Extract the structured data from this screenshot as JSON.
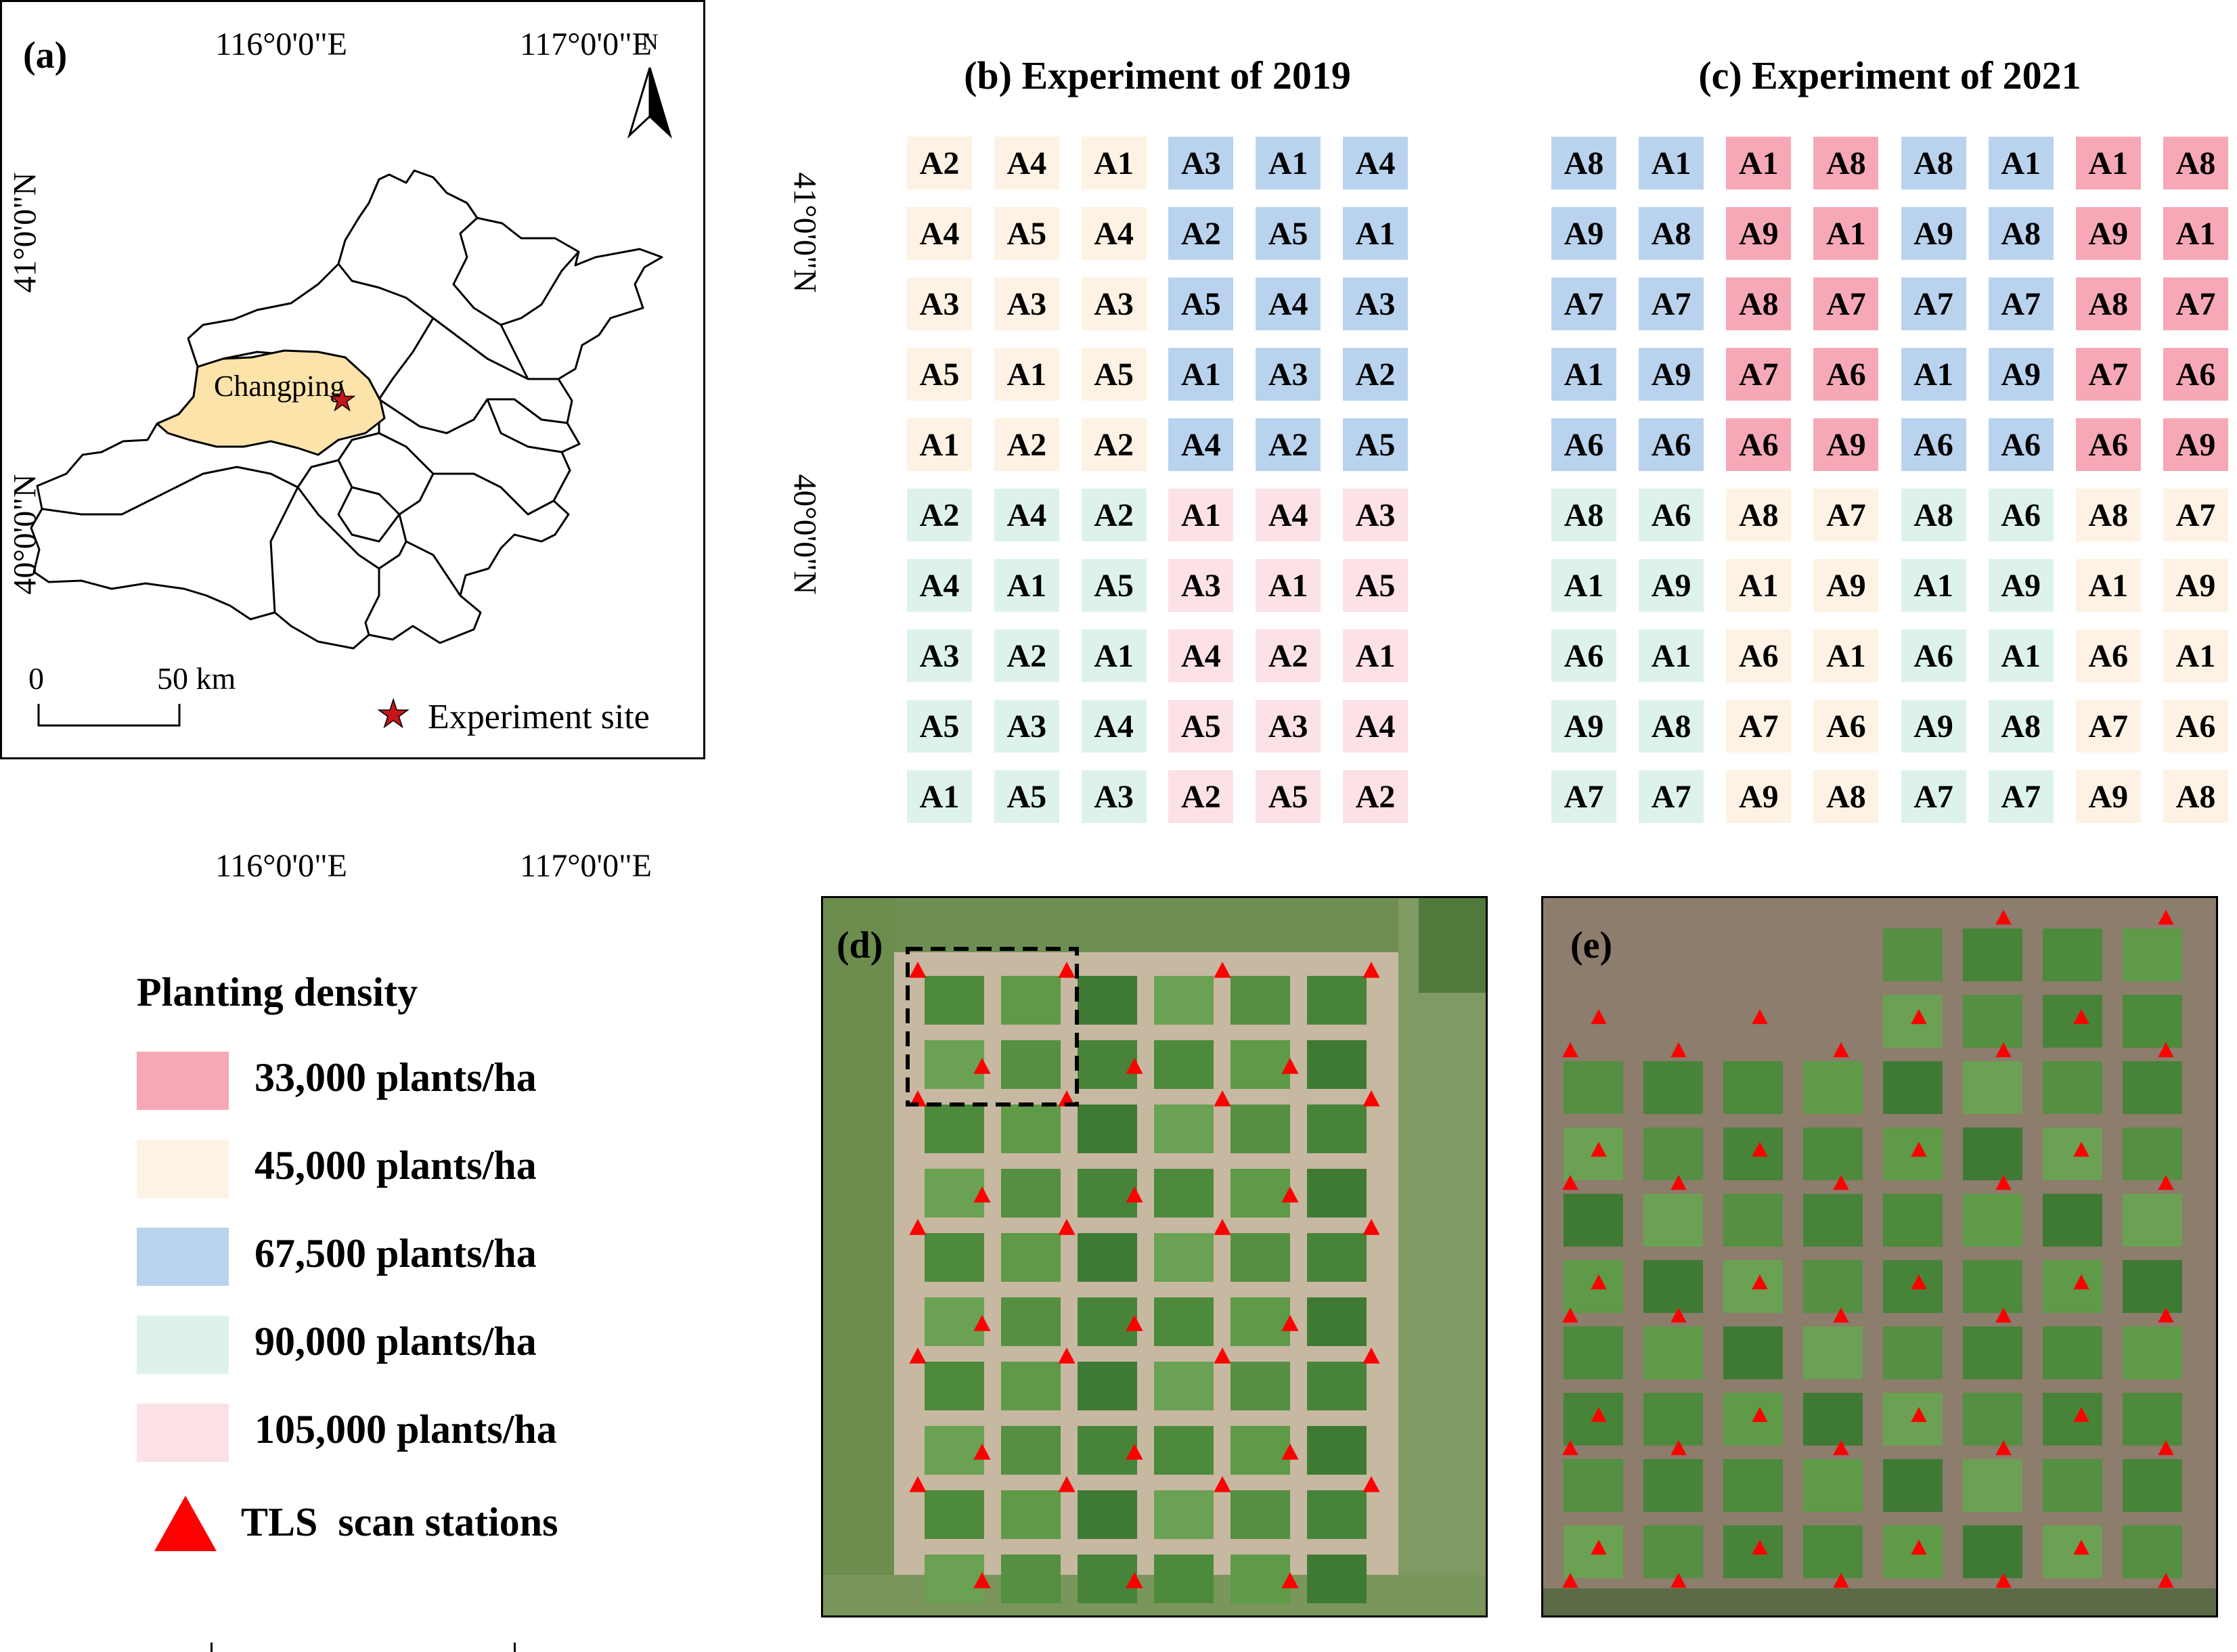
{
  "panel_a": {
    "label": "(a)",
    "top_lon_labels": [
      "116°0'0\"E",
      "117°0'0\"E"
    ],
    "bottom_lon_labels": [
      "116°0'0\"E",
      "117°0'0\"E"
    ],
    "left_lat_labels": [
      "41°0'0\"N",
      "40°0'0\"N"
    ],
    "right_lat_labels": [
      "41°0'0\"N",
      "40°0'0\"N"
    ],
    "north_label": "N",
    "highlight_district": "Changping",
    "scale_zero": "0",
    "scale_end": "50 km",
    "site_legend": "Experiment site",
    "star_symbol": "★",
    "district_color": "#fbe3a9",
    "site_color": "#c4161c"
  },
  "experiment_2019": {
    "title": "(b) Experiment of 2019",
    "rows": [
      [
        "A2",
        "A4",
        "A1",
        "A3",
        "A1",
        "A4"
      ],
      [
        "A4",
        "A5",
        "A4",
        "A2",
        "A5",
        "A1"
      ],
      [
        "A3",
        "A3",
        "A3",
        "A5",
        "A4",
        "A3"
      ],
      [
        "A5",
        "A1",
        "A5",
        "A1",
        "A3",
        "A2"
      ],
      [
        "A1",
        "A2",
        "A2",
        "A4",
        "A2",
        "A5"
      ],
      [
        "A2",
        "A4",
        "A2",
        "A1",
        "A4",
        "A3"
      ],
      [
        "A4",
        "A1",
        "A5",
        "A3",
        "A1",
        "A5"
      ],
      [
        "A3",
        "A2",
        "A1",
        "A4",
        "A2",
        "A1"
      ],
      [
        "A5",
        "A3",
        "A4",
        "A5",
        "A3",
        "A4"
      ],
      [
        "A1",
        "A5",
        "A3",
        "A2",
        "A5",
        "A2"
      ]
    ],
    "density_rows": [
      [
        "d45",
        "d45",
        "d45",
        "d675",
        "d675",
        "d675"
      ],
      [
        "d45",
        "d45",
        "d45",
        "d675",
        "d675",
        "d675"
      ],
      [
        "d45",
        "d45",
        "d45",
        "d675",
        "d675",
        "d675"
      ],
      [
        "d45",
        "d45",
        "d45",
        "d675",
        "d675",
        "d675"
      ],
      [
        "d45",
        "d45",
        "d45",
        "d675",
        "d675",
        "d675"
      ],
      [
        "d90",
        "d90",
        "d90",
        "d105",
        "d105",
        "d105"
      ],
      [
        "d90",
        "d90",
        "d90",
        "d105",
        "d105",
        "d105"
      ],
      [
        "d90",
        "d90",
        "d90",
        "d105",
        "d105",
        "d105"
      ],
      [
        "d90",
        "d90",
        "d90",
        "d105",
        "d105",
        "d105"
      ],
      [
        "d90",
        "d90",
        "d90",
        "d105",
        "d105",
        "d105"
      ]
    ]
  },
  "experiment_2021": {
    "title": "(c) Experiment of 2021",
    "rows": [
      [
        "A8",
        "A1",
        "A1",
        "A8",
        "A8",
        "A1",
        "A1",
        "A8"
      ],
      [
        "A9",
        "A8",
        "A9",
        "A1",
        "A9",
        "A8",
        "A9",
        "A1"
      ],
      [
        "A7",
        "A7",
        "A8",
        "A7",
        "A7",
        "A7",
        "A8",
        "A7"
      ],
      [
        "A1",
        "A9",
        "A7",
        "A6",
        "A1",
        "A9",
        "A7",
        "A6"
      ],
      [
        "A6",
        "A6",
        "A6",
        "A9",
        "A6",
        "A6",
        "A6",
        "A9"
      ],
      [
        "A8",
        "A6",
        "A8",
        "A7",
        "A8",
        "A6",
        "A8",
        "A7"
      ],
      [
        "A1",
        "A9",
        "A1",
        "A9",
        "A1",
        "A9",
        "A1",
        "A9"
      ],
      [
        "A6",
        "A1",
        "A6",
        "A1",
        "A6",
        "A1",
        "A6",
        "A1"
      ],
      [
        "A9",
        "A8",
        "A7",
        "A6",
        "A9",
        "A8",
        "A7",
        "A6"
      ],
      [
        "A7",
        "A7",
        "A9",
        "A8",
        "A7",
        "A7",
        "A9",
        "A8"
      ]
    ],
    "density_rows": [
      [
        "d675",
        "d675",
        "d33",
        "d33",
        "d675",
        "d675",
        "d33",
        "d33"
      ],
      [
        "d675",
        "d675",
        "d33",
        "d33",
        "d675",
        "d675",
        "d33",
        "d33"
      ],
      [
        "d675",
        "d675",
        "d33",
        "d33",
        "d675",
        "d675",
        "d33",
        "d33"
      ],
      [
        "d675",
        "d675",
        "d33",
        "d33",
        "d675",
        "d675",
        "d33",
        "d33"
      ],
      [
        "d675",
        "d675",
        "d33",
        "d33",
        "d675",
        "d675",
        "d33",
        "d33"
      ],
      [
        "d90",
        "d90",
        "d45",
        "d45",
        "d90",
        "d90",
        "d45",
        "d45"
      ],
      [
        "d90",
        "d90",
        "d45",
        "d45",
        "d90",
        "d90",
        "d45",
        "d45"
      ],
      [
        "d90",
        "d90",
        "d45",
        "d45",
        "d90",
        "d90",
        "d45",
        "d45"
      ],
      [
        "d90",
        "d90",
        "d45",
        "d45",
        "d90",
        "d90",
        "d45",
        "d45"
      ],
      [
        "d90",
        "d90",
        "d45",
        "d45",
        "d90",
        "d90",
        "d45",
        "d45"
      ]
    ]
  },
  "legend": {
    "title": "Planting density",
    "items": [
      {
        "key": "d33",
        "label": "33,000 plants/ha",
        "color": "#f7a8b6"
      },
      {
        "key": "d45",
        "label": "45,000 plants/ha",
        "color": "#fdf2e3"
      },
      {
        "key": "d675",
        "label": "67,500 plants/ha",
        "color": "#b9d3ee"
      },
      {
        "key": "d90",
        "label": "90,000 plants/ha",
        "color": "#ddf3ea"
      },
      {
        "key": "d105",
        "label": "105,000 plants/ha",
        "color": "#fce1e6"
      }
    ],
    "tls_label": "TLS  scan stations",
    "tls_color": "#ff0000"
  },
  "photo_d": {
    "label": "(d)"
  },
  "photo_e": {
    "label": "(e)"
  }
}
